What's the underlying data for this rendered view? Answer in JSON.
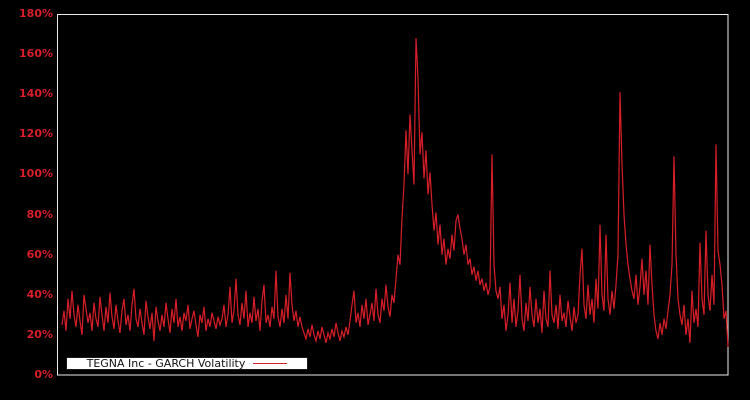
{
  "window": {
    "background_color": "#000000"
  },
  "chart_data": {
    "type": "line",
    "title": "",
    "xlabel": "",
    "ylabel": "",
    "x_axis_labels_visible": false,
    "grid": false,
    "plot_bg": "#000000",
    "plot_border_color": "#ececec",
    "axis_tick_color": "#d81e28",
    "ylim": [
      0,
      180
    ],
    "yticks": [
      180,
      160,
      140,
      120,
      100,
      80,
      60,
      40,
      20,
      0
    ],
    "ytick_suffix": "%",
    "legend_position": "bottom-left",
    "legend_bg": "#ffffff",
    "legend_border_color": "#1a1a1a",
    "legend_text_color": "#111111",
    "series": [
      {
        "name": "TEGNA Inc - GARCH Volatility",
        "color": "#d81e28",
        "unit": "%",
        "values": [
          25,
          32,
          22,
          38,
          28,
          42,
          30,
          24,
          35,
          27,
          20,
          40,
          33,
          26,
          31,
          22,
          36,
          28,
          24,
          39,
          30,
          22,
          34,
          26,
          41,
          29,
          23,
          35,
          27,
          21,
          32,
          38,
          25,
          30,
          22,
          35,
          43,
          28,
          24,
          33,
          26,
          20,
          37,
          29,
          23,
          31,
          17,
          34,
          27,
          22,
          30,
          24,
          36,
          28,
          21,
          33,
          26,
          38,
          24,
          29,
          22,
          31,
          27,
          35,
          23,
          28,
          32,
          25,
          19,
          30,
          26,
          34,
          22,
          28,
          24,
          31,
          27,
          23,
          29,
          25,
          28,
          35,
          24,
          30,
          44,
          26,
          32,
          48,
          30,
          25,
          36,
          28,
          42,
          24,
          31,
          26,
          39,
          27,
          33,
          22,
          37,
          45,
          26,
          30,
          24,
          34,
          28,
          52,
          29,
          24,
          33,
          26,
          40,
          28,
          51,
          35,
          27,
          32,
          24,
          29,
          24,
          21,
          18,
          23,
          19,
          25,
          20,
          17,
          22,
          18,
          24,
          20,
          16,
          21,
          18,
          23,
          19,
          26,
          21,
          17,
          22,
          19,
          24,
          20,
          27,
          35,
          42,
          26,
          31,
          24,
          35,
          28,
          38,
          25,
          30,
          36,
          27,
          43,
          30,
          26,
          38,
          32,
          45,
          34,
          29,
          40,
          36,
          48,
          60,
          55,
          78,
          95,
          122,
          100,
          130,
          112,
          95,
          168,
          148,
          110,
          121,
          98,
          112,
          90,
          101,
          85,
          72,
          81,
          65,
          75,
          60,
          68,
          55,
          63,
          58,
          70,
          62,
          77,
          80,
          73,
          68,
          60,
          65,
          55,
          58,
          50,
          54,
          47,
          52,
          45,
          48,
          42,
          46,
          40,
          44,
          110,
          55,
          42,
          38,
          44,
          28,
          35,
          22,
          30,
          46,
          26,
          38,
          24,
          32,
          50,
          28,
          22,
          36,
          27,
          44,
          30,
          24,
          38,
          26,
          33,
          21,
          42,
          28,
          24,
          52,
          30,
          26,
          35,
          23,
          40,
          27,
          31,
          24,
          37,
          29,
          22,
          34,
          26,
          30,
          50,
          63,
          35,
          28,
          45,
          30,
          38,
          26,
          48,
          33,
          75,
          40,
          32,
          70,
          38,
          30,
          42,
          33,
          45,
          60,
          141,
          105,
          80,
          65,
          55,
          48,
          42,
          38,
          50,
          35,
          44,
          58,
          40,
          52,
          35,
          65,
          45,
          30,
          22,
          18,
          26,
          20,
          28,
          23,
          32,
          40,
          55,
          109,
          60,
          38,
          30,
          25,
          35,
          20,
          28,
          16,
          42,
          26,
          33,
          24,
          66,
          38,
          30,
          72,
          40,
          32,
          50,
          35,
          115,
          62,
          55,
          45,
          28,
          32,
          14
        ]
      }
    ]
  },
  "legend": {
    "label": "TEGNA Inc - GARCH Volatility"
  }
}
